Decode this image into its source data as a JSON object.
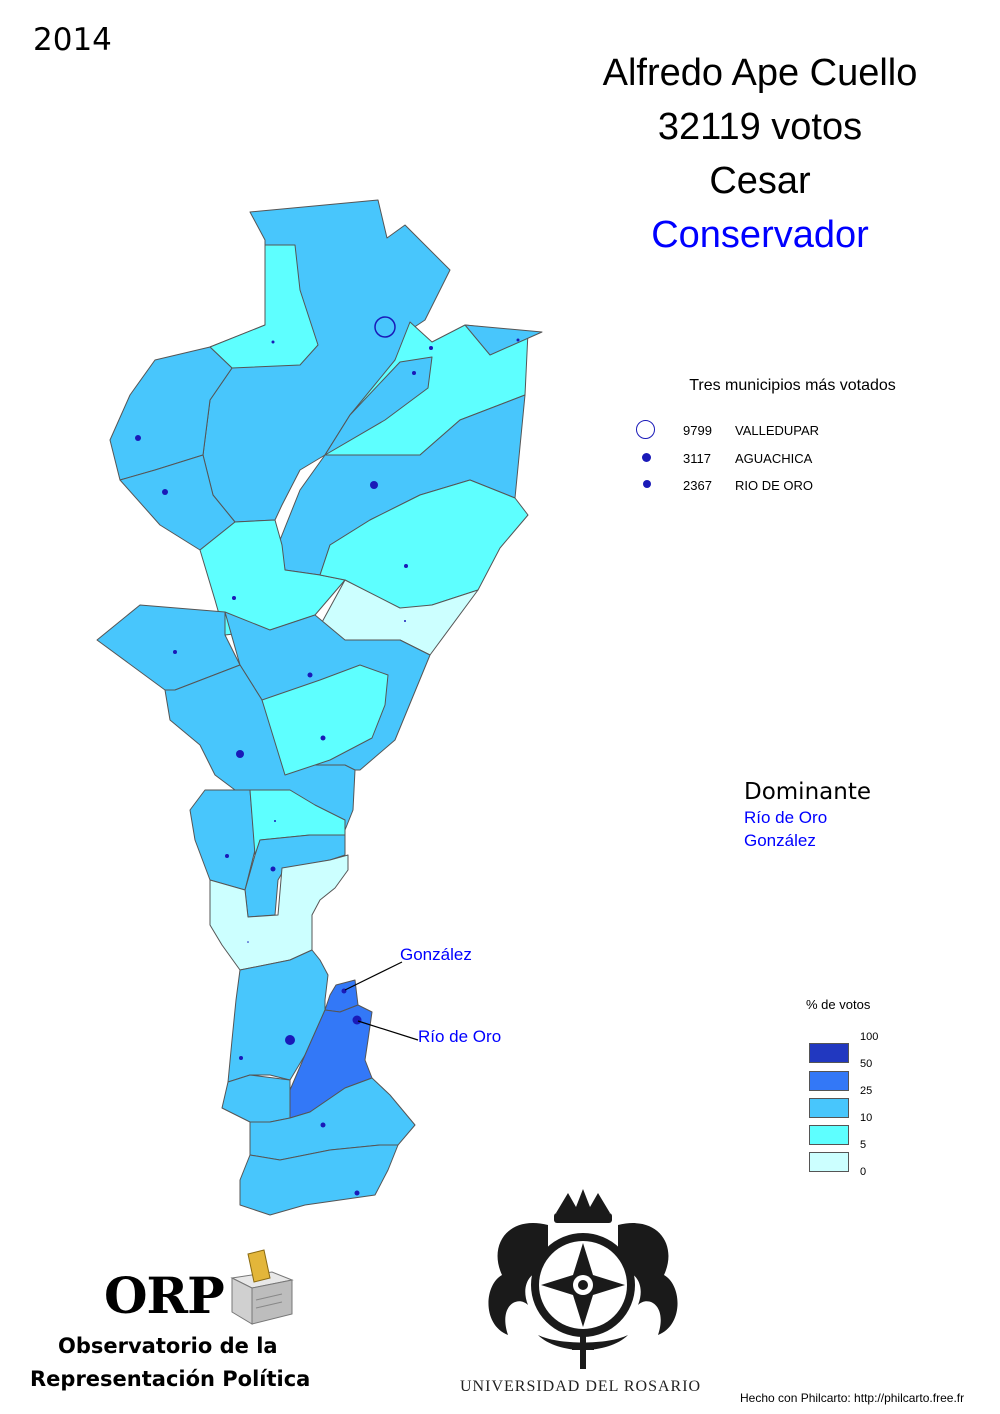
{
  "year": "2014",
  "header": {
    "candidate": "Alfredo Ape Cuello",
    "votes": "32119 votos",
    "department": "Cesar",
    "party": "Conservador"
  },
  "colors": {
    "party": "#0000ff",
    "class_0_5": "#ccffff",
    "class_5_10": "#5effff",
    "class_10_25": "#48c6fc",
    "class_25_50": "#3378f7",
    "class_50_100": "#2138c0",
    "dot": "#1a1ab8"
  },
  "top_municipalities": {
    "title": "Tres municipios más votados",
    "items": [
      {
        "value": "9799",
        "name": "VALLEDUPAR"
      },
      {
        "value": "3117",
        "name": "AGUACHICA"
      },
      {
        "value": "2367",
        "name": "RIO DE ORO"
      }
    ]
  },
  "dominante": {
    "title": "Dominante",
    "items": [
      "Río de Oro",
      "González"
    ]
  },
  "callouts": {
    "gonzalez": "González",
    "rio_de_oro": "Río de Oro"
  },
  "legend": {
    "title": "% de votos",
    "labels": [
      "100",
      "50",
      "25",
      "10",
      "5",
      "0"
    ],
    "classes": [
      "50 - 100",
      "25 - 50",
      "10 - 25",
      "5 - 10",
      "0 - 5"
    ]
  },
  "logos": {
    "orp_abbrev": "ORP",
    "orp_name_line1": "Observatorio de la",
    "orp_name_line2": "Representación Política",
    "university": "UNIVERSIDAD DEL ROSARIO"
  },
  "credit": "Hecho con Philcarto: http://philcarto.free.fr"
}
